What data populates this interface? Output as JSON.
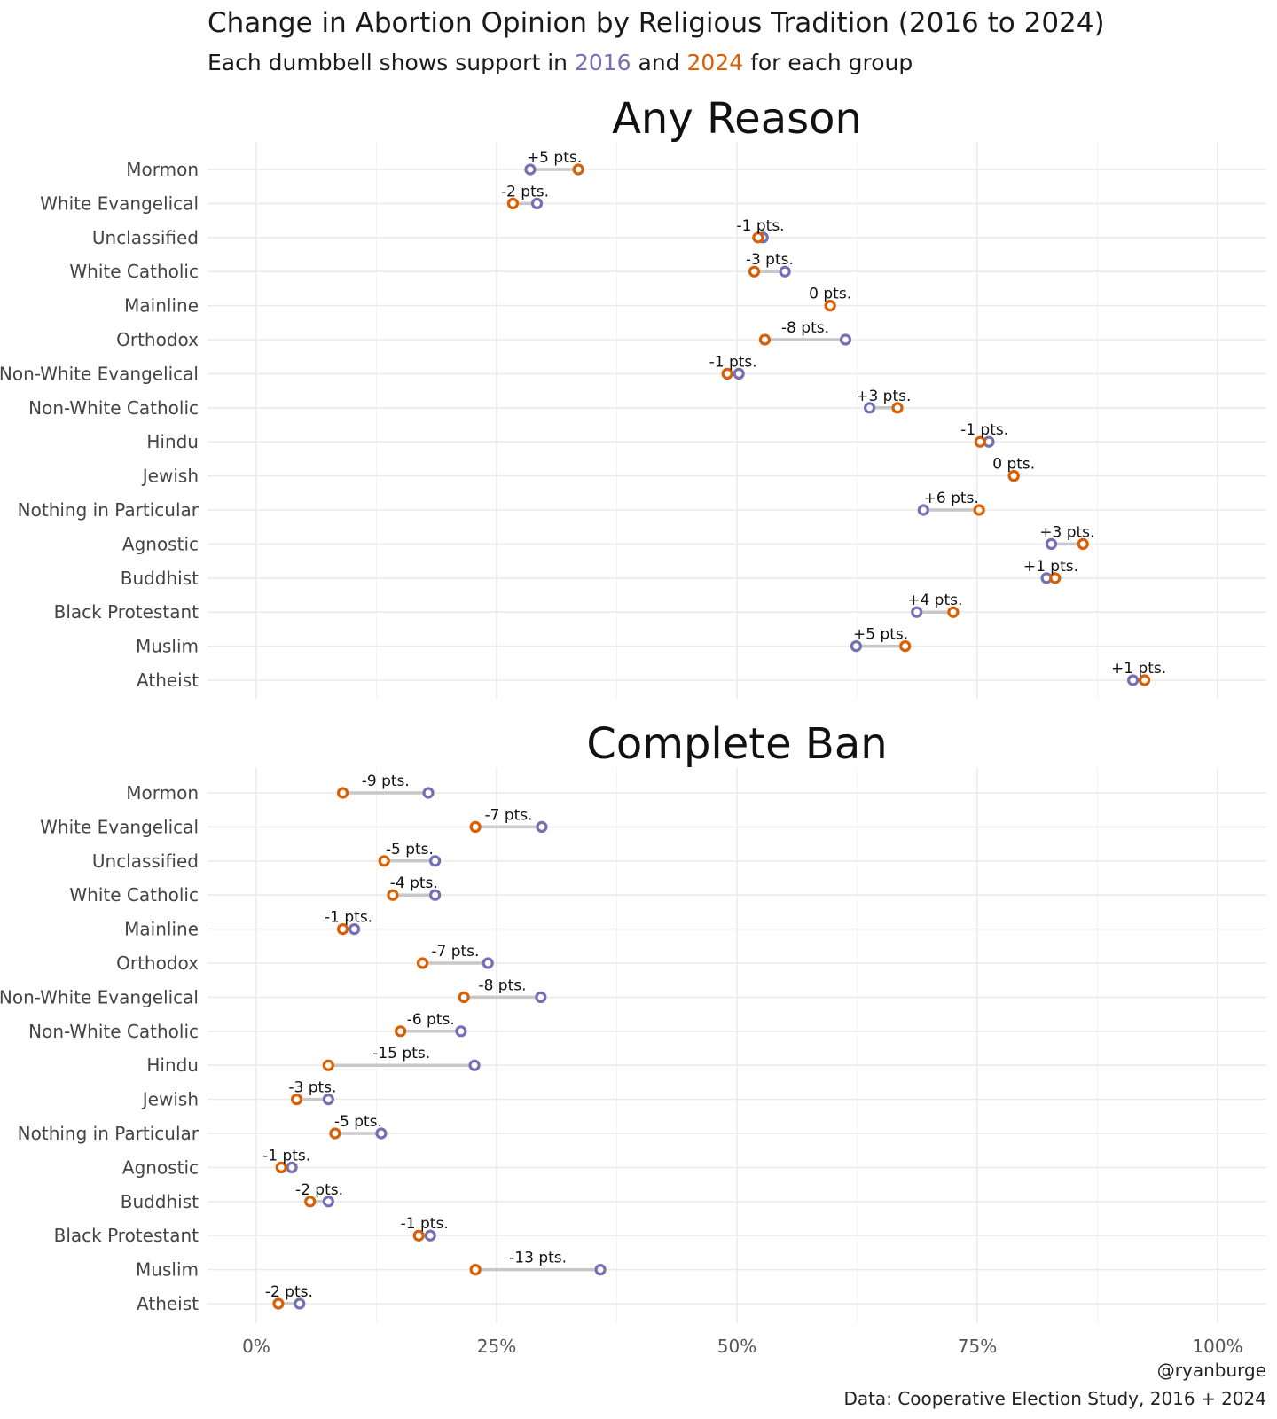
{
  "chart_data": {
    "type": "dumbbell",
    "title": "Change in Abortion Opinion by Religious Tradition (2016 to 2024)",
    "subtitle": {
      "prefix": "Each dumbbell shows support in ",
      "year1": "2016",
      "middle": " and ",
      "year2": "2024",
      "suffix": " for each group"
    },
    "colors": {
      "y2016": "#7570b3",
      "y2024": "#d95f02",
      "segment": "#c8c8c8",
      "grid": "#ebebeb"
    },
    "xlim": [
      -0.05,
      1.05
    ],
    "x_ticks": [
      0,
      0.25,
      0.5,
      0.75,
      1.0
    ],
    "x_tick_labels": [
      "0%",
      "25%",
      "50%",
      "75%",
      "100%"
    ],
    "caption": [
      "@ryanburge",
      "Data: Cooperative Election Study, 2016 + 2024"
    ],
    "panels": [
      {
        "title": "Any Reason",
        "rows": [
          {
            "group": "Mormon",
            "v2016": 0.285,
            "v2024": 0.335,
            "label": "+5 pts."
          },
          {
            "group": "White Evangelical",
            "v2016": 0.292,
            "v2024": 0.267,
            "label": "-2 pts."
          },
          {
            "group": "Unclassified",
            "v2016": 0.527,
            "v2024": 0.522,
            "label": "-1 pts."
          },
          {
            "group": "White Catholic",
            "v2016": 0.55,
            "v2024": 0.518,
            "label": "-3 pts."
          },
          {
            "group": "Mainline",
            "v2016": 0.597,
            "v2024": 0.597,
            "label": "0 pts."
          },
          {
            "group": "Orthodox",
            "v2016": 0.613,
            "v2024": 0.529,
            "label": "-8 pts."
          },
          {
            "group": "Non-White Evangelical",
            "v2016": 0.502,
            "v2024": 0.49,
            "label": "-1 pts."
          },
          {
            "group": "Non-White Catholic",
            "v2016": 0.638,
            "v2024": 0.667,
            "label": "+3 pts."
          },
          {
            "group": "Hindu",
            "v2016": 0.762,
            "v2024": 0.753,
            "label": "-1 pts."
          },
          {
            "group": "Jewish",
            "v2016": 0.788,
            "v2024": 0.788,
            "label": "0 pts."
          },
          {
            "group": "Nothing in Particular",
            "v2016": 0.694,
            "v2024": 0.752,
            "label": "+6 pts."
          },
          {
            "group": "Agnostic",
            "v2016": 0.827,
            "v2024": 0.86,
            "label": "+3 pts."
          },
          {
            "group": "Buddhist",
            "v2016": 0.822,
            "v2024": 0.831,
            "label": "+1 pts."
          },
          {
            "group": "Black Protestant",
            "v2016": 0.687,
            "v2024": 0.725,
            "label": "+4 pts."
          },
          {
            "group": "Muslim",
            "v2016": 0.624,
            "v2024": 0.675,
            "label": "+5 pts."
          },
          {
            "group": "Atheist",
            "v2016": 0.912,
            "v2024": 0.924,
            "label": "+1 pts."
          }
        ]
      },
      {
        "title": "Complete Ban",
        "rows": [
          {
            "group": "Mormon",
            "v2016": 0.179,
            "v2024": 0.09,
            "label": "-9 pts."
          },
          {
            "group": "White Evangelical",
            "v2016": 0.297,
            "v2024": 0.228,
            "label": "-7 pts."
          },
          {
            "group": "Unclassified",
            "v2016": 0.186,
            "v2024": 0.133,
            "label": "-5 pts."
          },
          {
            "group": "White Catholic",
            "v2016": 0.186,
            "v2024": 0.142,
            "label": "-4 pts."
          },
          {
            "group": "Mainline",
            "v2016": 0.102,
            "v2024": 0.09,
            "label": "-1 pts."
          },
          {
            "group": "Orthodox",
            "v2016": 0.241,
            "v2024": 0.173,
            "label": "-7 pts."
          },
          {
            "group": "Non-White Evangelical",
            "v2016": 0.296,
            "v2024": 0.216,
            "label": "-8 pts."
          },
          {
            "group": "Non-White Catholic",
            "v2016": 0.213,
            "v2024": 0.15,
            "label": "-6 pts."
          },
          {
            "group": "Hindu",
            "v2016": 0.227,
            "v2024": 0.075,
            "label": "-15 pts."
          },
          {
            "group": "Jewish",
            "v2016": 0.075,
            "v2024": 0.042,
            "label": "-3 pts."
          },
          {
            "group": "Nothing in Particular",
            "v2016": 0.13,
            "v2024": 0.082,
            "label": "-5 pts."
          },
          {
            "group": "Agnostic",
            "v2016": 0.037,
            "v2024": 0.026,
            "label": "-1 pts."
          },
          {
            "group": "Buddhist",
            "v2016": 0.075,
            "v2024": 0.056,
            "label": "-2 pts."
          },
          {
            "group": "Black Protestant",
            "v2016": 0.181,
            "v2024": 0.169,
            "label": "-1 pts."
          },
          {
            "group": "Muslim",
            "v2016": 0.358,
            "v2024": 0.228,
            "label": "-13 pts."
          },
          {
            "group": "Atheist",
            "v2016": 0.045,
            "v2024": 0.023,
            "label": "-2 pts."
          }
        ]
      }
    ]
  }
}
